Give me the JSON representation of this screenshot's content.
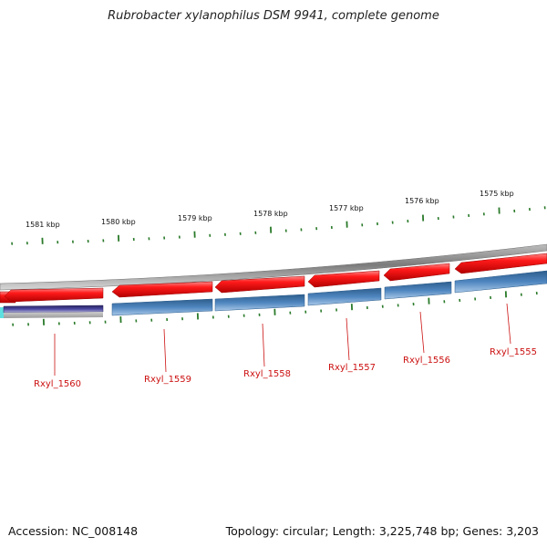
{
  "title": "Rubrobacter xylanophilus DSM 9941, complete genome",
  "accession_text": "Accession: NC_008148",
  "summary_text": "Topology: circular; Length: 3,225,748 bp; Genes: 3,203",
  "colors": {
    "forward_feature": "#ee1111",
    "reverse_feature": "#4f86bf",
    "reverse_feature_first": "#3f3a8a",
    "gene_label": "#cc1111",
    "tick": "#2a7a2a",
    "backbone": "#888888"
  },
  "kbp_markers": [
    "1581 kbp",
    "1580 kbp",
    "1579 kbp",
    "1578 kbp",
    "1577 kbp",
    "1576 kbp",
    "1575 kbp"
  ],
  "genes": [
    "Rxyl_1560",
    "Rxyl_1559",
    "Rxyl_1558",
    "Rxyl_1557",
    "Rxyl_1556",
    "Rxyl_1555"
  ]
}
